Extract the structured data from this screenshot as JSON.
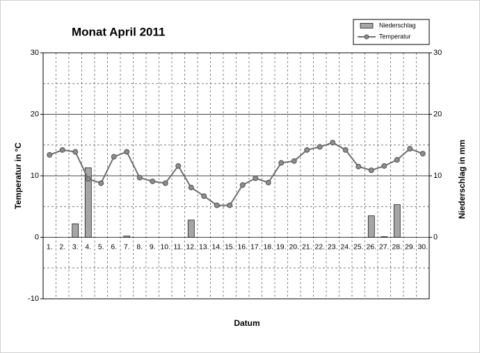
{
  "chart_data": {
    "type": "bar-line",
    "title": "Monat  April 2011",
    "xlabel": "Datum",
    "ylabel": "Temperatur in °C",
    "y2label": "Niederschlag in mm",
    "categories": [
      "1.",
      "2.",
      "3.",
      "4.",
      "5.",
      "6.",
      "7.",
      "8.",
      "9.",
      "10.",
      "11.",
      "12.",
      "13.",
      "14.",
      "15.",
      "16.",
      "17.",
      "18.",
      "19.",
      "20.",
      "21.",
      "22.",
      "23.",
      "24.",
      "25.",
      "26.",
      "27.",
      "28.",
      "29.",
      "30."
    ],
    "series": [
      {
        "name": "Niederschlag",
        "type": "bar",
        "axis": "y2",
        "color": "#a6a6a6",
        "values": [
          0,
          0,
          2.2,
          11.3,
          0,
          0,
          0.2,
          0,
          0,
          0,
          0,
          2.8,
          0,
          0,
          0,
          0,
          0,
          0,
          0,
          0,
          0,
          0,
          0,
          0,
          0,
          3.5,
          0.1,
          5.3,
          0,
          0
        ]
      },
      {
        "name": "Temperatur",
        "type": "line",
        "color": "#6e6e6e",
        "values": [
          13.4,
          14.2,
          13.9,
          9.5,
          8.8,
          13.1,
          13.9,
          9.7,
          9.1,
          8.8,
          11.6,
          8.1,
          6.7,
          5.2,
          5.2,
          8.5,
          9.6,
          8.9,
          12.1,
          12.4,
          14.2,
          14.7,
          15.4,
          14.2,
          11.5,
          10.9,
          11.6,
          12.6,
          14.4,
          13.6
        ]
      }
    ],
    "ylim": [
      -10,
      30
    ],
    "yticks": [
      -10,
      0,
      10,
      20,
      30
    ],
    "y2lim": [
      -10,
      30
    ],
    "y2ticks": [
      0,
      10,
      20,
      30
    ],
    "grid": true,
    "legend": "top-right"
  }
}
